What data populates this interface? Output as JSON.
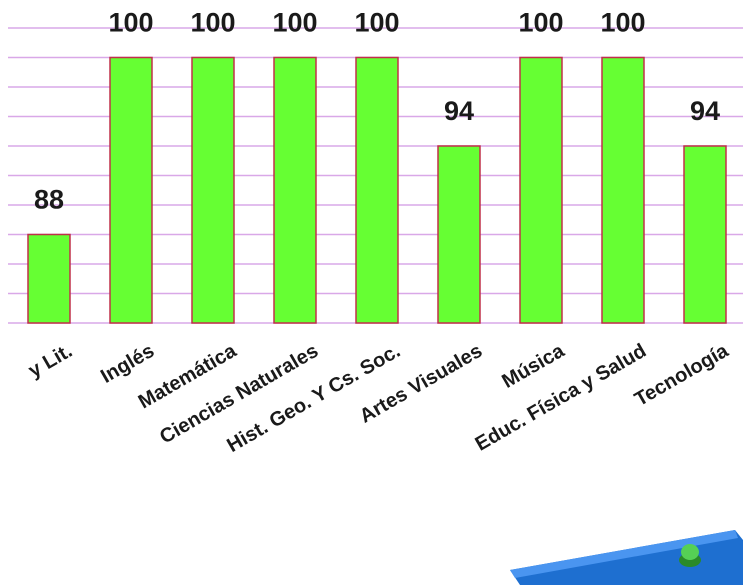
{
  "chart_data": {
    "type": "bar",
    "categories": [
      "y Lit.",
      "Inglés",
      "Matemática",
      "Ciencias Naturales",
      "Hist. Geo. Y Cs. Soc.",
      "Artes Visuales",
      "Música",
      "Educ. Física y Salud",
      "Tecnología"
    ],
    "values": [
      88,
      100,
      100,
      100,
      100,
      94,
      100,
      100,
      94
    ],
    "color": "#66ff33",
    "ylim": [
      82,
      102
    ],
    "yticks": [
      82,
      84,
      86,
      88,
      90,
      92,
      94,
      96,
      98,
      100,
      102
    ],
    "grid": true
  }
}
